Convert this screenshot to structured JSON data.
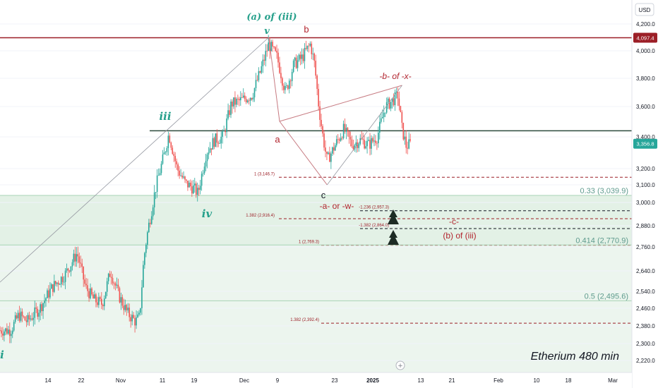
{
  "header": {
    "currency": "USD"
  },
  "chart_data": {
    "type": "candlestick",
    "title": "",
    "watermark": "Etherium 480 min",
    "currency": "USD",
    "ylim": [
      2200,
      4300
    ],
    "y_ticks": [
      2220,
      2300,
      2380,
      2460,
      2540,
      2640,
      2760,
      2880,
      3000,
      3100,
      3200,
      3400,
      3600,
      3800,
      4000,
      4200
    ],
    "y_tick_labels": [
      "2,220.0",
      "2,300.0",
      "2,380.0",
      "2,460.0",
      "2,540.0",
      "2,640.0",
      "2,760.0",
      "2,880.0",
      "3,000.0",
      "3,100.0",
      "3,200.0",
      "3,400.0",
      "3,600.0",
      "3,800.0",
      "4,000.0",
      "4,200.0"
    ],
    "x_tick_labels": [
      "14",
      "22",
      "Nov",
      "11",
      "19",
      "Dec",
      "9",
      "23",
      "2025",
      "13",
      "21",
      "Feb",
      "10",
      "18",
      "Mar"
    ],
    "price_labels": [
      {
        "value": 4097.4,
        "text": "4,097.4",
        "color": "#9c1f27"
      },
      {
        "value": 3356.8,
        "text": "3,356.8",
        "color": "#26a69a"
      }
    ],
    "horizontal_levels": [
      {
        "name": "resistance",
        "value": 4097.4,
        "color": "#9c1f27"
      },
      {
        "name": "support",
        "value": 3440,
        "color": "#2c4a3c"
      }
    ],
    "fib_levels": [
      {
        "value": 3146.7,
        "label": "1 (3,146.7)",
        "color": "#9c1f27"
      },
      {
        "value": 2957.3,
        "label": "-1.236 (2,957.3)",
        "color": "#131722"
      },
      {
        "value": 2916.4,
        "label": "1.382 (2,916.4)",
        "color": "#9c1f27"
      },
      {
        "value": 2864.0,
        "label": "-1.382 (2,864.0)",
        "color": "#131722"
      },
      {
        "value": 2769.3,
        "label": "1 (2,769.3)",
        "color": "#9c1f27"
      },
      {
        "value": 2392.4,
        "label": "1.382 (2,392.4)",
        "color": "#9c1f27"
      }
    ],
    "zone_levels": [
      {
        "value": 3039.9,
        "label": "0.33 (3,039.9)"
      },
      {
        "value": 2770.9,
        "label": "0.414 (2,770.9)"
      },
      {
        "value": 2495.6,
        "label": "0.5 (2,495.6)"
      }
    ],
    "wave_labels": [
      {
        "text": "(a) of (iii)",
        "color": "teal"
      },
      {
        "text": "v",
        "color": "teal"
      },
      {
        "text": "iii",
        "color": "teal"
      },
      {
        "text": "iv",
        "color": "teal"
      },
      {
        "text": "i",
        "color": "teal"
      },
      {
        "text": "b",
        "color": "red"
      },
      {
        "text": "a",
        "color": "red"
      },
      {
        "text": "c",
        "color": "dark"
      },
      {
        "text": "-b- of -x-",
        "color": "red"
      },
      {
        "text": "-a- or -w-",
        "color": "red"
      },
      {
        "text": "-c-",
        "color": "red"
      },
      {
        "text": "(b) of (iii)",
        "color": "red"
      }
    ],
    "key_points": [
      {
        "name": "i",
        "date": "2024-10-05",
        "price": 2310
      },
      {
        "name": "iii",
        "date": "2024-11-12",
        "price": 3440
      },
      {
        "name": "iv",
        "date": "2024-11-19",
        "price": 3010
      },
      {
        "name": "v",
        "date": "2024-12-06",
        "price": 4100
      },
      {
        "name": "a",
        "date": "2024-12-10",
        "price": 3500
      },
      {
        "name": "b",
        "date": "2024-12-16",
        "price": 4100
      },
      {
        "name": "c",
        "date": "2024-12-20",
        "price": 3100
      },
      {
        "name": "-b- of -x-",
        "date": "2025-01-07",
        "price": 3750
      },
      {
        "name": "last",
        "date": "2025-01-09",
        "price": 3356.8
      }
    ],
    "price_path": [
      {
        "date": "2024-10-05",
        "price": 2360
      },
      {
        "date": "2024-10-07",
        "price": 2430
      },
      {
        "date": "2024-10-09",
        "price": 2400
      },
      {
        "date": "2024-10-12",
        "price": 2460
      },
      {
        "date": "2024-10-15",
        "price": 2560
      },
      {
        "date": "2024-10-18",
        "price": 2620
      },
      {
        "date": "2024-10-21",
        "price": 2730
      },
      {
        "date": "2024-10-23",
        "price": 2560
      },
      {
        "date": "2024-10-25",
        "price": 2500
      },
      {
        "date": "2024-10-27",
        "price": 2480
      },
      {
        "date": "2024-10-29",
        "price": 2640
      },
      {
        "date": "2024-10-31",
        "price": 2520
      },
      {
        "date": "2024-11-02",
        "price": 2440
      },
      {
        "date": "2024-11-04",
        "price": 2400
      },
      {
        "date": "2024-11-05",
        "price": 2420
      },
      {
        "date": "2024-11-06",
        "price": 2700
      },
      {
        "date": "2024-11-07",
        "price": 2860
      },
      {
        "date": "2024-11-09",
        "price": 3100
      },
      {
        "date": "2024-11-11",
        "price": 3300
      },
      {
        "date": "2024-11-12",
        "price": 3420
      },
      {
        "date": "2024-11-14",
        "price": 3200
      },
      {
        "date": "2024-11-16",
        "price": 3110
      },
      {
        "date": "2024-11-18",
        "price": 3080
      },
      {
        "date": "2024-11-19",
        "price": 3050
      },
      {
        "date": "2024-11-21",
        "price": 3300
      },
      {
        "date": "2024-11-23",
        "price": 3380
      },
      {
        "date": "2024-11-25",
        "price": 3400
      },
      {
        "date": "2024-11-27",
        "price": 3620
      },
      {
        "date": "2024-11-29",
        "price": 3640
      },
      {
        "date": "2024-12-02",
        "price": 3680
      },
      {
        "date": "2024-12-04",
        "price": 3850
      },
      {
        "date": "2024-12-06",
        "price": 4050
      },
      {
        "date": "2024-12-08",
        "price": 3950
      },
      {
        "date": "2024-12-10",
        "price": 3700
      },
      {
        "date": "2024-12-12",
        "price": 3900
      },
      {
        "date": "2024-12-14",
        "price": 3950
      },
      {
        "date": "2024-12-16",
        "price": 4050
      },
      {
        "date": "2024-12-17",
        "price": 3900
      },
      {
        "date": "2024-12-18",
        "price": 3600
      },
      {
        "date": "2024-12-19",
        "price": 3400
      },
      {
        "date": "2024-12-20",
        "price": 3250
      },
      {
        "date": "2024-12-22",
        "price": 3350
      },
      {
        "date": "2024-12-24",
        "price": 3450
      },
      {
        "date": "2024-12-26",
        "price": 3350
      },
      {
        "date": "2024-12-28",
        "price": 3380
      },
      {
        "date": "2024-12-30",
        "price": 3350
      },
      {
        "date": "2025-01-01",
        "price": 3400
      },
      {
        "date": "2025-01-03",
        "price": 3600
      },
      {
        "date": "2025-01-05",
        "price": 3650
      },
      {
        "date": "2025-01-06",
        "price": 3680
      },
      {
        "date": "2025-01-07",
        "price": 3450
      },
      {
        "date": "2025-01-08",
        "price": 3340
      },
      {
        "date": "2025-01-09",
        "price": 3356.8
      }
    ]
  }
}
